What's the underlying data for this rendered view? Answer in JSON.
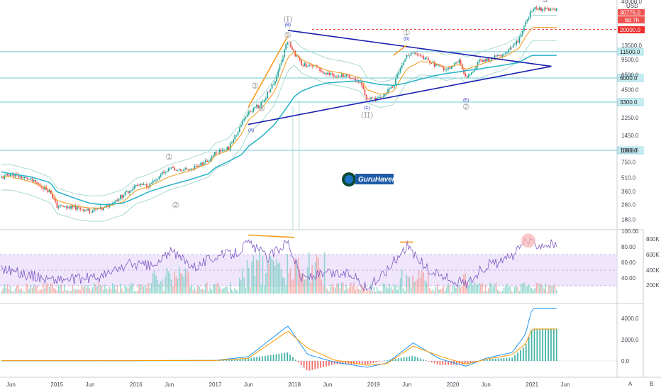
{
  "currency": "USD",
  "price_labels": {
    "last": "30775.0",
    "countdown": "6d 7h",
    "target": "20000.0"
  },
  "levels": [
    "11500.0",
    "6000.0",
    "3300.0",
    "1000.0"
  ],
  "price_axis": [
    "40000.0",
    "13500.0",
    "9500.0",
    "6500.0",
    "4500.0",
    "3300.0",
    "2250.0",
    "1450.0",
    "1000.0",
    "750.0",
    "510.0",
    "360.0",
    "260.0",
    "180.0"
  ],
  "rsi_axis": [
    "100.00",
    "80.00",
    "60.00",
    "40.00"
  ],
  "volume_axis": [
    "800K",
    "600K",
    "400K",
    "200K"
  ],
  "osc_axis": [
    "4000.0",
    "2000.0",
    "0.0"
  ],
  "time_axis": [
    "Jun",
    "2015",
    "Jun",
    "2016",
    "Jun",
    "2017",
    "Jun",
    "2018",
    "Jun",
    "2019",
    "Jun",
    "2020",
    "Jun",
    "2021",
    "Jun"
  ],
  "corner_buttons": [
    "A",
    "B"
  ],
  "waves": {
    "big": [
      "(I)",
      "(II)"
    ],
    "small": [
      "1",
      "2",
      "3",
      "4",
      "5",
      "1",
      "2",
      "3",
      "5"
    ],
    "abcde": [
      "(A)",
      "(B)",
      "(C)",
      "(D)",
      "(E)"
    ]
  },
  "watermark": "GuruHaven",
  "colors": {
    "candle_up": "#26a69a",
    "candle_down": "#ef5350",
    "ma_orange": "#f2a12c",
    "ma_teal": "#2fb5c9",
    "triangle": "#1a1fb0",
    "level": "#6ac7d6",
    "rsi_line": "#7e57c2",
    "rsi_band": "#e9ddfb",
    "target": "#ef2b2b",
    "trend_orange": "#f59b1f",
    "osc_blue": "#2196f3",
    "osc_orange": "#ff9800"
  },
  "chart_data": {
    "type": "line",
    "xlabel": "",
    "ylabel": "",
    "scale": "log",
    "ylim": [
      160,
      45000
    ],
    "x": [
      "2014-04",
      "2014-06",
      "2014-09",
      "2014-12",
      "2015-01",
      "2015-04",
      "2015-06",
      "2015-08",
      "2015-11",
      "2016-01",
      "2016-03",
      "2016-06",
      "2016-09",
      "2016-12",
      "2017-01",
      "2017-03",
      "2017-05",
      "2017-06",
      "2017-08",
      "2017-10",
      "2017-12",
      "2018-01",
      "2018-02",
      "2018-04",
      "2018-06",
      "2018-09",
      "2018-11",
      "2018-12",
      "2019-02",
      "2019-04",
      "2019-06",
      "2019-08",
      "2019-10",
      "2019-12",
      "2020-02",
      "2020-03",
      "2020-05",
      "2020-07",
      "2020-09",
      "2020-11",
      "2020-12",
      "2021-01"
    ],
    "series": [
      {
        "values": [
          480,
          560,
          480,
          360,
          250,
          240,
          225,
          235,
          330,
          420,
          420,
          650,
          610,
          780,
          960,
          1050,
          1900,
          2500,
          3200,
          5400,
          15500,
          11000,
          8500,
          8000,
          6500,
          6400,
          5400,
          3500,
          3600,
          5000,
          11000,
          10500,
          8500,
          7200,
          9500,
          5800,
          9000,
          9800,
          10800,
          15500,
          23000,
          33000
        ]
      },
      {
        "values": [
          520,
          520,
          460,
          380,
          290,
          250,
          240,
          240,
          280,
          370,
          410,
          520,
          600,
          720,
          880,
          1000,
          1500,
          2100,
          2800,
          4300,
          10000,
          11500,
          9500,
          8200,
          7200,
          6600,
          6000,
          4500,
          4000,
          4300,
          7500,
          9000,
          8800,
          7800,
          8400,
          7400,
          8300,
          9300,
          10300,
          12500,
          16500,
          21000
        ]
      },
      {
        "values": [
          600,
          560,
          520,
          450,
          360,
          300,
          270,
          260,
          270,
          310,
          360,
          420,
          480,
          560,
          650,
          760,
          900,
          1100,
          1400,
          1900,
          3000,
          3800,
          4300,
          4900,
          5300,
          5500,
          5600,
          5400,
          5100,
          5000,
          5300,
          5800,
          6300,
          6700,
          7000,
          7200,
          7500,
          7900,
          8300,
          8800,
          9700,
          10500
        ]
      }
    ],
    "markers": [
      {
        "label": "(A)",
        "x": "2017-06",
        "y": 1900
      },
      {
        "label": "(B)",
        "x": "2017-12",
        "y": 19500
      },
      {
        "label": "(C)",
        "x": "2018-12",
        "y": 3300
      },
      {
        "label": "(D)",
        "x": "2019-06",
        "y": 13800
      },
      {
        "label": "(E)",
        "x": "2020-03",
        "y": 4000
      }
    ],
    "horizontal_levels": [
      11500,
      6000,
      3300,
      1000,
      20000
    ],
    "triangle": {
      "upper": [
        [
          "2017-12",
          19500
        ],
        [
          "2021-02",
          8000
        ]
      ],
      "lower": [
        [
          "2017-06",
          1900
        ],
        [
          "2021-02",
          8000
        ]
      ]
    },
    "annotations": [
      "(I)",
      "(II)",
      "1",
      "2",
      "3",
      "4",
      "5"
    ],
    "rsi": {
      "ylim": [
        20,
        100
      ],
      "band": [
        30,
        70
      ],
      "x": [
        "2014-04",
        "2014-08",
        "2014-12",
        "2015-04",
        "2015-08",
        "2015-12",
        "2016-04",
        "2016-06",
        "2016-10",
        "2017-01",
        "2017-04",
        "2017-06",
        "2017-09",
        "2017-12",
        "2018-02",
        "2018-06",
        "2018-10",
        "2018-12",
        "2019-03",
        "2019-06",
        "2019-09",
        "2019-12",
        "2020-03",
        "2020-06",
        "2020-09",
        "2020-11",
        "2020-12",
        "2021-01"
      ],
      "values": [
        55,
        45,
        38,
        38,
        42,
        58,
        55,
        74,
        55,
        68,
        72,
        85,
        66,
        88,
        40,
        45,
        45,
        25,
        50,
        82,
        52,
        40,
        32,
        56,
        62,
        75,
        90,
        84
      ]
    },
    "oscillator": {
      "ylim": [
        -1200,
        5000
      ],
      "x": [
        "2014-04",
        "2016-01",
        "2017-01",
        "2017-06",
        "2017-12",
        "2018-03",
        "2018-07",
        "2018-12",
        "2019-03",
        "2019-07",
        "2019-11",
        "2020-03",
        "2020-06",
        "2020-10",
        "2020-12",
        "2021-01"
      ],
      "macd": [
        30,
        30,
        50,
        400,
        3300,
        600,
        -100,
        -600,
        -200,
        1700,
        200,
        -500,
        250,
        800,
        2500,
        4900
      ],
      "signal": [
        30,
        30,
        40,
        250,
        2800,
        1200,
        100,
        -400,
        -250,
        1400,
        450,
        -300,
        150,
        600,
        1600,
        3000
      ]
    }
  }
}
